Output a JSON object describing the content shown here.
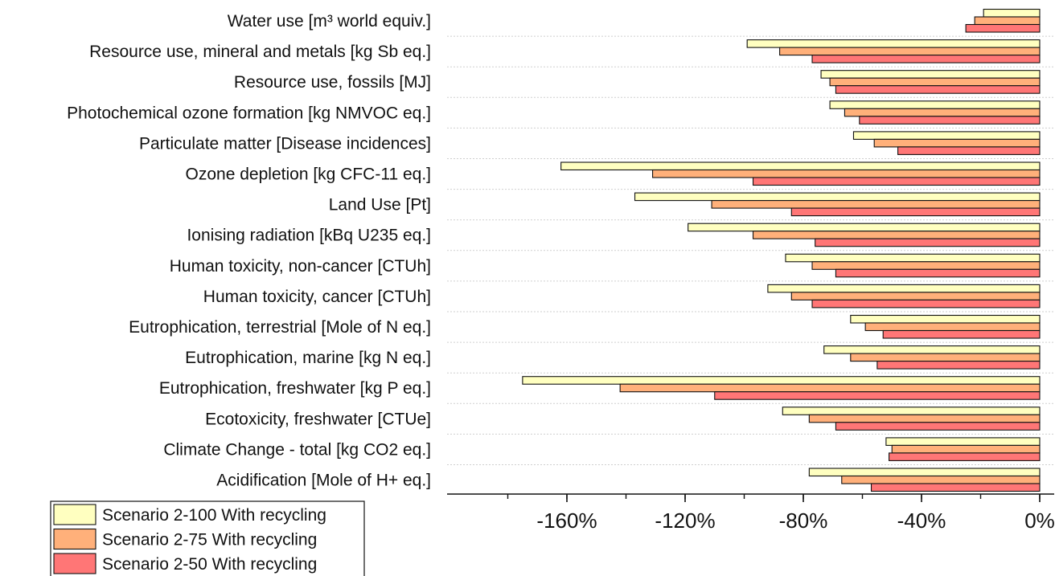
{
  "chart_data": {
    "type": "bar",
    "orientation": "horizontal",
    "categories": [
      "Water use [m³ world equiv.]",
      "Resource use, mineral and metals [kg Sb eq.]",
      "Resource use, fossils [MJ]",
      "Photochemical ozone formation [kg NMVOC eq.]",
      "Particulate matter [Disease incidences]",
      "Ozone depletion [kg CFC-11 eq.]",
      "Land Use [Pt]",
      "Ionising radiation [kBq U235 eq.]",
      "Human toxicity, non-cancer [CTUh]",
      "Human toxicity, cancer [CTUh]",
      "Eutrophication, terrestrial [Mole of N eq.]",
      "Eutrophication, marine [kg N eq.]",
      "Eutrophication, freshwater [kg P eq.]",
      "Ecotoxicity, freshwater [CTUe]",
      "Climate Change - total [kg CO2 eq.]",
      "Acidification [Mole of H+ eq.]"
    ],
    "series": [
      {
        "name": "Scenario 2-100 With recycling",
        "color": "#ffffc0",
        "values": [
          -19,
          -99,
          -74,
          -71,
          -63,
          -162,
          -137,
          -119,
          -86,
          -92,
          -64,
          -73,
          -175,
          -87,
          -52,
          -78
        ]
      },
      {
        "name": "Scenario 2-75 With recycling",
        "color": "#ffb07a",
        "values": [
          -22,
          -88,
          -71,
          -66,
          -56,
          -131,
          -111,
          -97,
          -77,
          -84,
          -59,
          -64,
          -142,
          -78,
          -50,
          -67
        ]
      },
      {
        "name": "Scenario 2-50 With recycling",
        "color": "#ff7676",
        "values": [
          -25,
          -77,
          -69,
          -61,
          -48,
          -97,
          -84,
          -76,
          -69,
          -77,
          -53,
          -55,
          -110,
          -69,
          -51,
          -57
        ]
      }
    ],
    "xlim": [
      -190,
      0
    ],
    "xticks": [
      {
        "value": -160,
        "label": "-160%"
      },
      {
        "value": -120,
        "label": "-120%"
      },
      {
        "value": -80,
        "label": "-80%"
      },
      {
        "value": -40,
        "label": "-40%"
      },
      {
        "value": 0,
        "label": "0%"
      }
    ],
    "minor_tick_step": 20,
    "grid": true,
    "legend_position": "bottom-left",
    "title": "",
    "xlabel": "",
    "ylabel": ""
  }
}
